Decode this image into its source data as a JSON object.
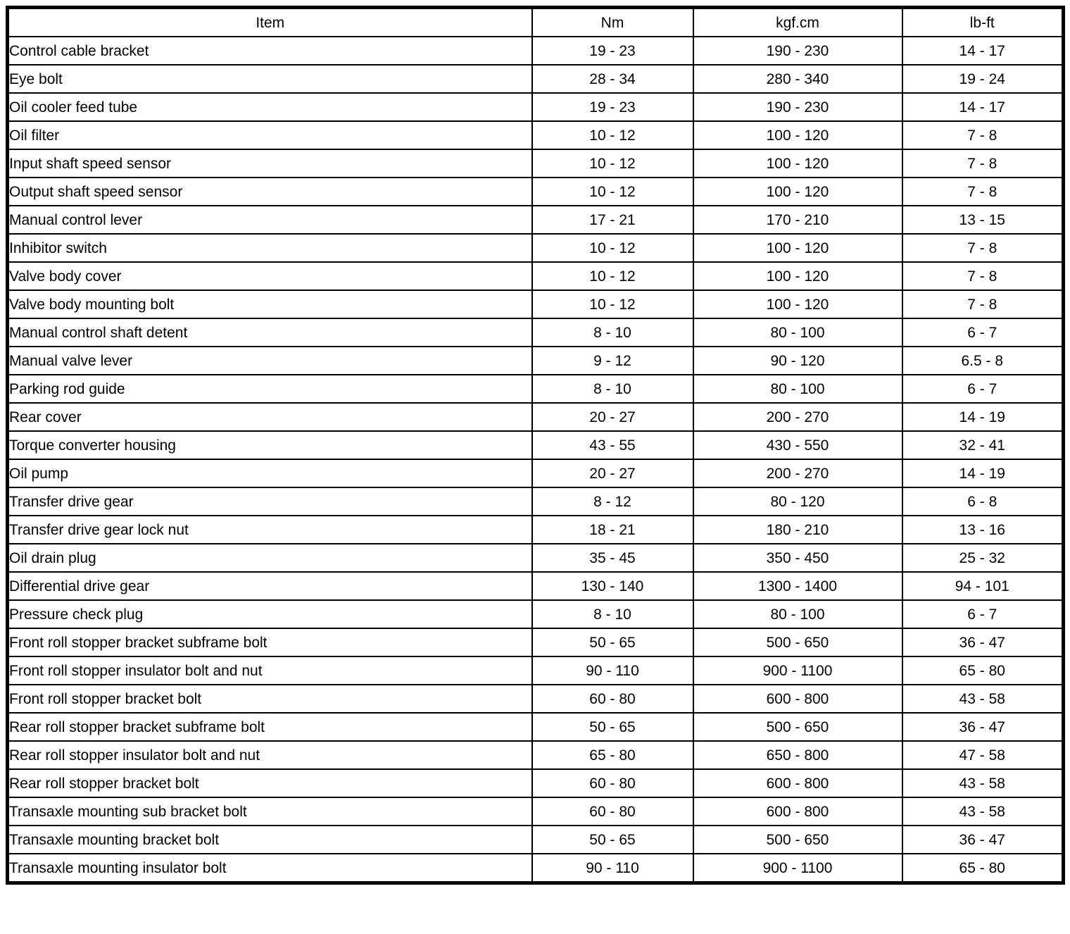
{
  "table": {
    "headers": [
      "Item",
      "Nm",
      "kgf.cm",
      "lb-ft"
    ],
    "rows": [
      [
        "Control cable bracket",
        "19 - 23",
        "190 - 230",
        "14 - 17"
      ],
      [
        "Eye bolt",
        "28 - 34",
        "280 - 340",
        "19 - 24"
      ],
      [
        "Oil cooler feed tube",
        "19 - 23",
        "190 - 230",
        "14 - 17"
      ],
      [
        "Oil filter",
        "10 - 12",
        "100 - 120",
        "7 - 8"
      ],
      [
        "Input shaft speed sensor",
        "10 - 12",
        "100 - 120",
        "7 - 8"
      ],
      [
        "Output shaft speed sensor",
        "10 - 12",
        "100 - 120",
        "7 - 8"
      ],
      [
        "Manual control lever",
        "17 - 21",
        "170 - 210",
        "13 - 15"
      ],
      [
        "Inhibitor switch",
        "10 - 12",
        "100 - 120",
        "7 - 8"
      ],
      [
        "Valve body cover",
        "10 - 12",
        "100 - 120",
        "7 - 8"
      ],
      [
        "Valve body mounting bolt",
        "10 - 12",
        "100 - 120",
        "7 - 8"
      ],
      [
        "Manual control shaft detent",
        "8 - 10",
        "80 - 100",
        "6 - 7"
      ],
      [
        "Manual valve lever",
        "9 - 12",
        "90 - 120",
        "6.5 - 8"
      ],
      [
        "Parking rod guide",
        "8 - 10",
        "80 - 100",
        "6 - 7"
      ],
      [
        "Rear cover",
        "20 - 27",
        "200 - 270",
        "14 - 19"
      ],
      [
        "Torque converter housing",
        "43 - 55",
        "430 - 550",
        "32 - 41"
      ],
      [
        "Oil pump",
        "20 - 27",
        "200 - 270",
        "14 - 19"
      ],
      [
        "Transfer drive gear",
        "8 - 12",
        "80 - 120",
        "6 - 8"
      ],
      [
        "Transfer drive gear lock nut",
        "18 - 21",
        "180 - 210",
        "13 - 16"
      ],
      [
        "Oil drain plug",
        "35 - 45",
        "350 - 450",
        "25 - 32"
      ],
      [
        "Differential drive gear",
        "130 - 140",
        "1300 - 1400",
        "94 - 101"
      ],
      [
        "Pressure check plug",
        "8 - 10",
        "80 - 100",
        "6 - 7"
      ],
      [
        "Front roll stopper bracket subframe bolt",
        "50 - 65",
        "500 - 650",
        "36 - 47"
      ],
      [
        "Front roll stopper insulator bolt and nut",
        "90 - 110",
        "900 - 1100",
        "65 - 80"
      ],
      [
        "Front roll stopper bracket bolt",
        "60 - 80",
        "600 - 800",
        "43 - 58"
      ],
      [
        "Rear roll stopper bracket subframe bolt",
        "50 - 65",
        "500 - 650",
        "36 - 47"
      ],
      [
        "Rear roll stopper insulator bolt and nut",
        "65 - 80",
        "650 - 800",
        "47 - 58"
      ],
      [
        "Rear roll stopper bracket bolt",
        "60 - 80",
        "600 - 800",
        "43 - 58"
      ],
      [
        "Transaxle mounting sub bracket bolt",
        "60 - 80",
        "600 - 800",
        "43 - 58"
      ],
      [
        "Transaxle mounting bracket bolt",
        "50 - 65",
        "500 - 650",
        "36 - 47"
      ],
      [
        "Transaxle mounting insulator bolt",
        "90 - 110",
        "900 - 1100",
        "65 - 80"
      ]
    ]
  }
}
